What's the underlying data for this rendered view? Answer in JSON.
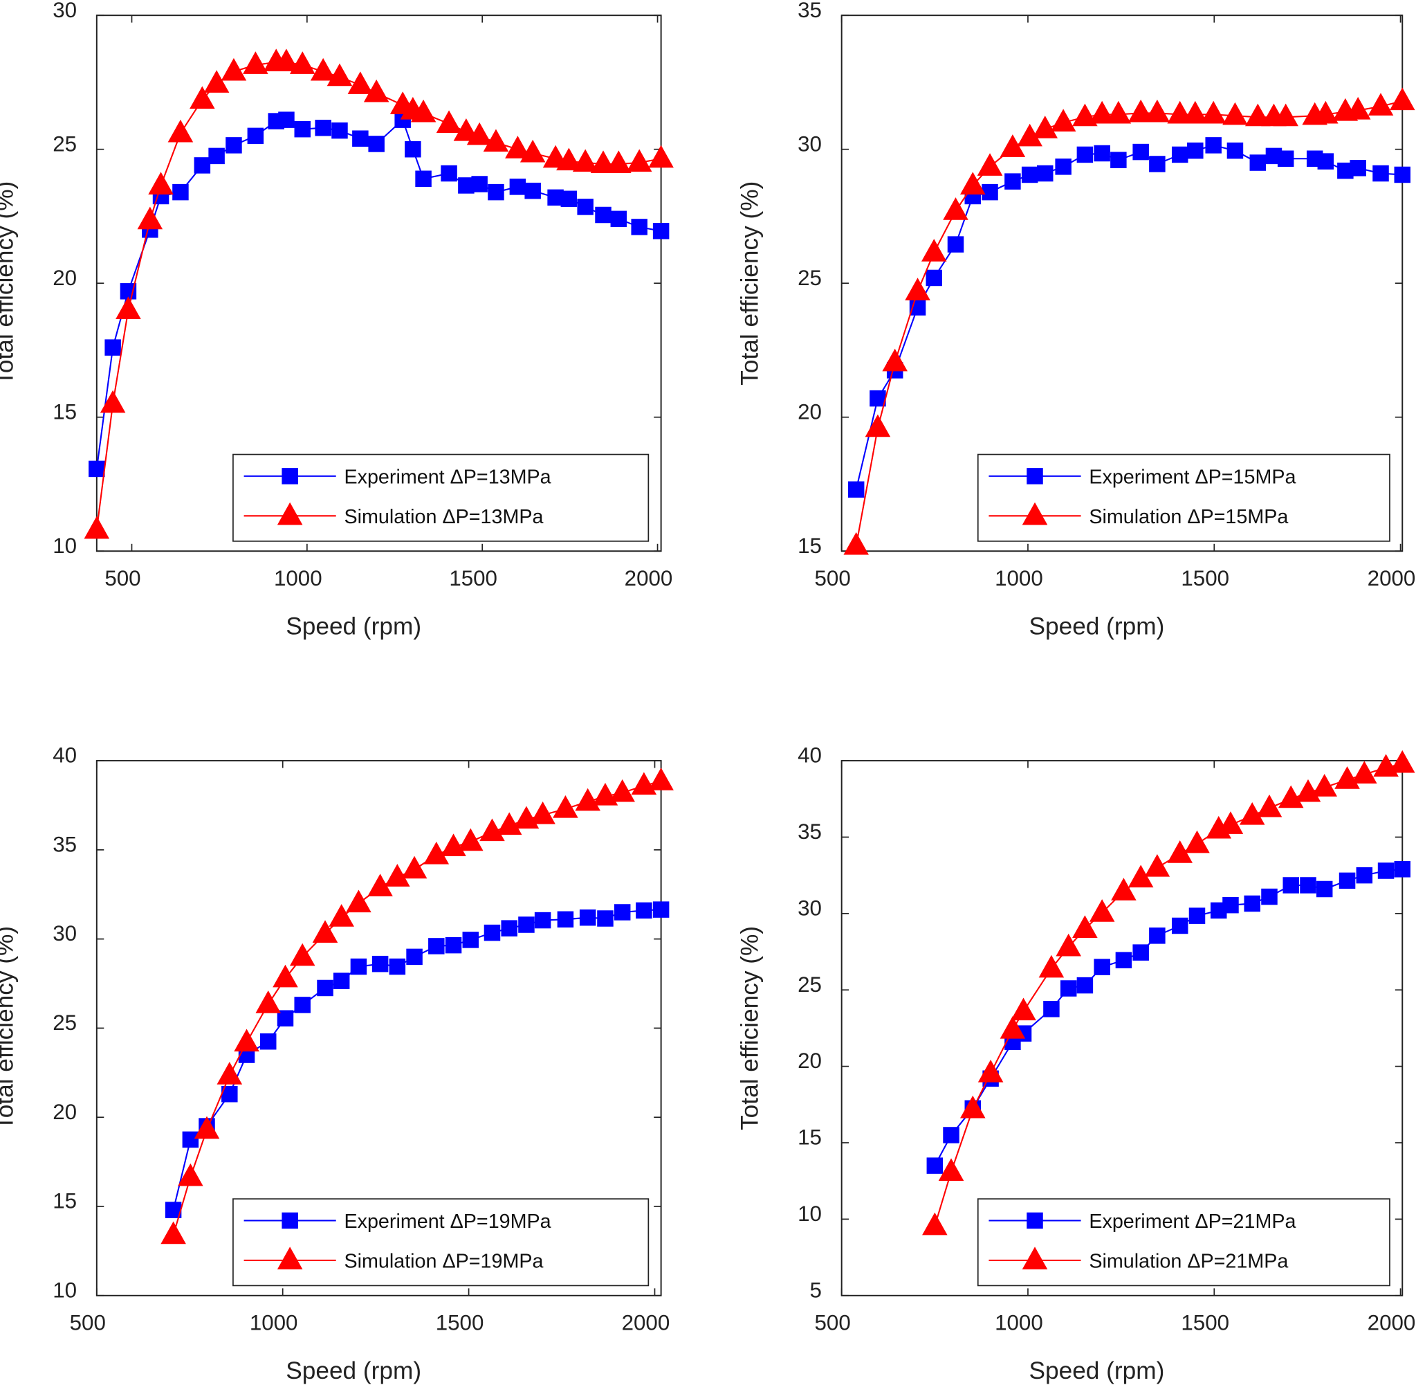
{
  "chart_data": [
    {
      "type": "line",
      "title": "",
      "xlabel": "Speed (rpm)",
      "ylabel": "Total efficiency (%)",
      "xlim": [
        400,
        2010
      ],
      "ylim": [
        10,
        30
      ],
      "xticks": [
        500,
        1000,
        1500,
        2000
      ],
      "yticks": [
        10,
        15,
        20,
        25,
        30
      ],
      "legend_position": "bottom-right",
      "series": [
        {
          "name": "Experiment ΔP=13MPa",
          "color": "#0000ff",
          "marker": "square",
          "x": [
            400,
            446,
            490,
            552,
            583,
            639,
            701,
            742,
            791,
            853,
            912,
            941,
            987,
            1046,
            1093,
            1152,
            1198,
            1273,
            1302,
            1332,
            1405,
            1454,
            1492,
            1539,
            1601,
            1644,
            1709,
            1747,
            1794,
            1845,
            1889,
            1948,
            2010
          ],
          "y": [
            13.07,
            17.6,
            19.7,
            22.0,
            23.25,
            23.4,
            24.4,
            24.75,
            25.15,
            25.5,
            26.05,
            26.1,
            25.75,
            25.8,
            25.7,
            25.4,
            25.2,
            26.1,
            25.0,
            23.9,
            24.1,
            23.65,
            23.7,
            23.4,
            23.6,
            23.45,
            23.2,
            23.15,
            22.85,
            22.55,
            22.4,
            22.1,
            21.95
          ]
        },
        {
          "name": "Simulation ΔP=13MPa",
          "color": "#ff0000",
          "marker": "triangle",
          "x": [
            400,
            446,
            490,
            552,
            583,
            639,
            701,
            742,
            791,
            853,
            912,
            941,
            987,
            1046,
            1093,
            1152,
            1198,
            1273,
            1302,
            1332,
            1405,
            1454,
            1492,
            1539,
            1601,
            1644,
            1709,
            1747,
            1794,
            1845,
            1889,
            1948,
            2010
          ],
          "y": [
            10.8,
            15.5,
            19.0,
            22.35,
            23.65,
            25.6,
            26.85,
            27.45,
            27.9,
            28.15,
            28.25,
            28.25,
            28.15,
            27.9,
            27.7,
            27.4,
            27.1,
            26.65,
            26.45,
            26.35,
            25.95,
            25.65,
            25.5,
            25.25,
            25.0,
            24.85,
            24.65,
            24.55,
            24.5,
            24.45,
            24.45,
            24.5,
            24.65
          ]
        }
      ]
    },
    {
      "type": "line",
      "title": "",
      "xlabel": "Speed (rpm)",
      "ylabel": "Total efficiency (%)",
      "xlim": [
        500,
        2005
      ],
      "ylim": [
        15,
        35
      ],
      "xticks": [
        500,
        1000,
        1500,
        2000
      ],
      "yticks": [
        15,
        20,
        25,
        30,
        35
      ],
      "legend_position": "bottom-right",
      "series": [
        {
          "name": "Experiment ΔP=15MPa",
          "color": "#0000ff",
          "marker": "square",
          "x": [
            539,
            597,
            643,
            704,
            748,
            806,
            852,
            898,
            959,
            1005,
            1046,
            1095,
            1153,
            1199,
            1243,
            1303,
            1347,
            1408,
            1449,
            1498,
            1556,
            1617,
            1660,
            1692,
            1770,
            1799,
            1852,
            1886,
            1947,
            2005
          ],
          "y": [
            17.3,
            20.7,
            21.75,
            24.1,
            25.2,
            26.45,
            28.25,
            28.4,
            28.8,
            29.05,
            29.1,
            29.35,
            29.8,
            29.85,
            29.6,
            29.9,
            29.45,
            29.8,
            29.95,
            30.15,
            29.95,
            29.5,
            29.75,
            29.65,
            29.65,
            29.55,
            29.2,
            29.3,
            29.1,
            29.05
          ]
        },
        {
          "name": "Simulation ΔP=15MPa",
          "color": "#ff0000",
          "marker": "triangle",
          "x": [
            539,
            597,
            643,
            704,
            748,
            806,
            852,
            898,
            959,
            1005,
            1046,
            1095,
            1153,
            1199,
            1243,
            1303,
            1347,
            1408,
            1449,
            1498,
            1556,
            1617,
            1660,
            1692,
            1770,
            1799,
            1852,
            1886,
            1947,
            2005
          ],
          "y": [
            15.2,
            19.6,
            22.05,
            24.7,
            26.15,
            27.7,
            28.65,
            29.35,
            30.05,
            30.45,
            30.75,
            31.0,
            31.2,
            31.3,
            31.3,
            31.35,
            31.35,
            31.3,
            31.3,
            31.3,
            31.25,
            31.2,
            31.2,
            31.2,
            31.25,
            31.3,
            31.4,
            31.45,
            31.6,
            31.8
          ]
        }
      ]
    },
    {
      "type": "line",
      "title": "",
      "xlabel": "Speed (rpm)",
      "ylabel": "Total efficiency (%)",
      "xlim": [
        500,
        2017
      ],
      "ylim": [
        10,
        40
      ],
      "xticks": [
        500,
        1000,
        1500,
        2000
      ],
      "yticks": [
        10,
        15,
        20,
        25,
        30,
        35,
        40
      ],
      "legend_position": "bottom-right",
      "series": [
        {
          "name": "Experiment ΔP=19MPa",
          "color": "#0000ff",
          "marker": "square",
          "x": [
            706,
            752,
            796,
            857,
            903,
            961,
            1007,
            1053,
            1114,
            1158,
            1204,
            1262,
            1308,
            1354,
            1413,
            1459,
            1505,
            1563,
            1609,
            1655,
            1699,
            1760,
            1820,
            1867,
            1913,
            1971,
            2017
          ],
          "y": [
            14.8,
            18.75,
            19.5,
            21.3,
            23.5,
            24.25,
            25.55,
            26.3,
            27.25,
            27.65,
            28.45,
            28.6,
            28.45,
            29.0,
            29.6,
            29.65,
            29.95,
            30.35,
            30.6,
            30.8,
            31.05,
            31.1,
            31.2,
            31.15,
            31.5,
            31.6,
            31.65
          ]
        },
        {
          "name": "Simulation ΔP=19MPa",
          "color": "#ff0000",
          "marker": "triangle",
          "x": [
            706,
            752,
            796,
            857,
            903,
            961,
            1007,
            1053,
            1114,
            1158,
            1204,
            1262,
            1308,
            1354,
            1413,
            1459,
            1505,
            1563,
            1609,
            1655,
            1699,
            1760,
            1820,
            1867,
            1913,
            1971,
            2017
          ],
          "y": [
            13.4,
            16.65,
            19.3,
            22.35,
            24.2,
            26.35,
            27.8,
            29.0,
            30.3,
            31.2,
            32.0,
            32.9,
            33.45,
            33.9,
            34.7,
            35.15,
            35.45,
            36.0,
            36.35,
            36.7,
            36.95,
            37.3,
            37.7,
            38.0,
            38.2,
            38.6,
            38.85
          ]
        }
      ]
    },
    {
      "type": "line",
      "title": "",
      "xlabel": "Speed (rpm)",
      "ylabel": "Total efficiency (%)",
      "xlim": [
        500,
        2005
      ],
      "ylim": [
        5,
        40
      ],
      "xticks": [
        500,
        1000,
        1500,
        2000
      ],
      "yticks": [
        5,
        10,
        15,
        20,
        25,
        30,
        35,
        40
      ],
      "legend_position": "bottom-right",
      "series": [
        {
          "name": "Experiment ΔP=21MPa",
          "color": "#0000ff",
          "marker": "square",
          "x": [
            750,
            794,
            852,
            900,
            959,
            988,
            1063,
            1109,
            1153,
            1199,
            1257,
            1303,
            1347,
            1408,
            1454,
            1512,
            1544,
            1602,
            1648,
            1706,
            1752,
            1796,
            1857,
            1903,
            1961,
            2005
          ],
          "y": [
            13.5,
            15.5,
            17.25,
            19.2,
            21.6,
            22.15,
            23.75,
            25.1,
            25.3,
            26.5,
            26.95,
            27.45,
            28.55,
            29.2,
            29.85,
            30.2,
            30.55,
            30.65,
            31.1,
            31.85,
            31.85,
            31.6,
            32.15,
            32.5,
            32.8,
            32.9
          ]
        },
        {
          "name": "Simulation ΔP=21MPa",
          "color": "#ff0000",
          "marker": "triangle",
          "x": [
            750,
            794,
            852,
            900,
            959,
            988,
            1063,
            1109,
            1153,
            1199,
            1257,
            1303,
            1347,
            1408,
            1454,
            1512,
            1544,
            1602,
            1648,
            1706,
            1752,
            1796,
            1857,
            1903,
            1961,
            2005
          ],
          "y": [
            9.55,
            13.1,
            17.2,
            19.55,
            22.4,
            23.6,
            26.4,
            27.8,
            29.0,
            30.05,
            31.45,
            32.3,
            33.0,
            33.9,
            34.55,
            35.5,
            35.8,
            36.4,
            36.9,
            37.5,
            37.9,
            38.25,
            38.75,
            39.1,
            39.55,
            39.8
          ]
        }
      ]
    }
  ]
}
